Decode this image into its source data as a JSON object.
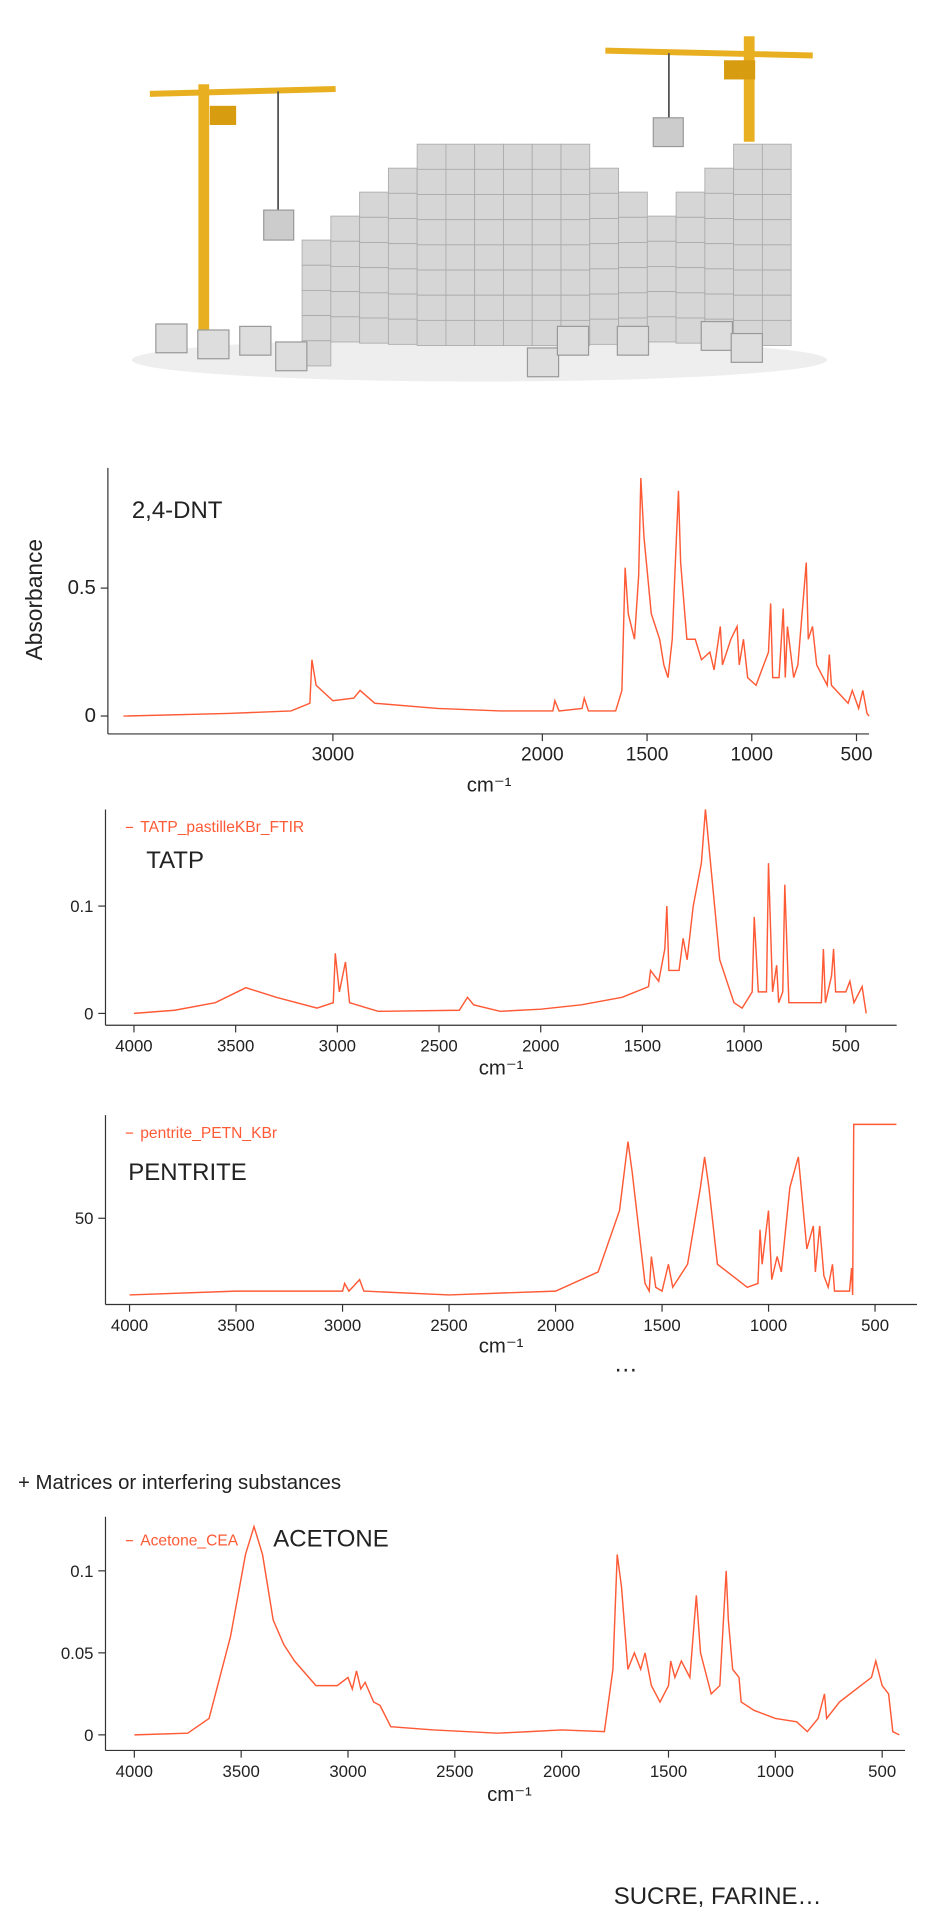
{
  "chart_data": [
    {
      "type": "line",
      "annotation": "2,4-DNT",
      "y_label": "Absorbance",
      "x_label": "cm⁻¹",
      "color": "#ff5a36",
      "xlim": [
        4000,
        440
      ],
      "xticks": [
        3000,
        2000,
        1500,
        1000,
        500
      ],
      "ylim": [
        -0.07,
        0.97
      ],
      "yticks": [
        0,
        0.5
      ],
      "x": [
        4000,
        3500,
        3200,
        3110,
        3100,
        3080,
        3000,
        2900,
        2870,
        2800,
        2500,
        2200,
        1950,
        1940,
        1920,
        1810,
        1800,
        1780,
        1650,
        1620,
        1605,
        1590,
        1560,
        1540,
        1530,
        1515,
        1480,
        1440,
        1420,
        1400,
        1380,
        1365,
        1350,
        1340,
        1310,
        1270,
        1240,
        1200,
        1180,
        1150,
        1140,
        1100,
        1070,
        1060,
        1040,
        1020,
        980,
        920,
        910,
        900,
        870,
        850,
        840,
        830,
        800,
        780,
        740,
        730,
        710,
        690,
        640,
        630,
        620,
        540,
        520,
        490,
        470,
        450,
        440
      ],
      "values": [
        0,
        0.01,
        0.02,
        0.05,
        0.22,
        0.12,
        0.06,
        0.07,
        0.1,
        0.05,
        0.03,
        0.02,
        0.02,
        0.06,
        0.02,
        0.03,
        0.07,
        0.02,
        0.02,
        0.1,
        0.58,
        0.4,
        0.3,
        0.55,
        0.93,
        0.7,
        0.4,
        0.3,
        0.2,
        0.15,
        0.3,
        0.6,
        0.88,
        0.6,
        0.3,
        0.3,
        0.22,
        0.25,
        0.18,
        0.35,
        0.2,
        0.3,
        0.35,
        0.2,
        0.3,
        0.15,
        0.12,
        0.25,
        0.44,
        0.15,
        0.15,
        0.42,
        0.15,
        0.35,
        0.15,
        0.2,
        0.6,
        0.3,
        0.35,
        0.2,
        0.12,
        0.24,
        0.12,
        0.05,
        0.1,
        0.03,
        0.1,
        0.01,
        0
      ]
    },
    {
      "type": "line",
      "annotation": "TATP",
      "x_label": "cm⁻¹",
      "legend": "upper left",
      "xlim": [
        4140,
        250
      ],
      "xticks": [
        4000,
        3500,
        3000,
        2500,
        2000,
        1500,
        1000,
        500
      ],
      "ylim": [
        -0.011,
        0.19
      ],
      "yticks": [
        0,
        0.1
      ],
      "x": [
        4000,
        3800,
        3600,
        3450,
        3300,
        3100,
        3020,
        3010,
        2990,
        2960,
        2940,
        2800,
        2400,
        2360,
        2330,
        2200,
        2000,
        1800,
        1600,
        1470,
        1460,
        1420,
        1390,
        1380,
        1370,
        1320,
        1300,
        1280,
        1250,
        1230,
        1210,
        1190,
        1170,
        1120,
        1050,
        1010,
        960,
        950,
        930,
        890,
        880,
        860,
        840,
        830,
        810,
        800,
        780,
        620,
        610,
        600,
        570,
        560,
        550,
        500,
        480,
        460,
        420,
        400
      ],
      "series": [
        {
          "name": "TATP_pastilleKBr_FTIR",
          "color": "#ff5a36",
          "values": [
            0,
            0.003,
            0.01,
            0.024,
            0.015,
            0.005,
            0.01,
            0.056,
            0.02,
            0.048,
            0.01,
            0.002,
            0.003,
            0.015,
            0.008,
            0.002,
            0.004,
            0.008,
            0.015,
            0.025,
            0.04,
            0.03,
            0.06,
            0.1,
            0.04,
            0.04,
            0.07,
            0.05,
            0.1,
            0.12,
            0.14,
            0.19,
            0.15,
            0.05,
            0.01,
            0.005,
            0.02,
            0.09,
            0.02,
            0.02,
            0.14,
            0.02,
            0.045,
            0.01,
            0.02,
            0.12,
            0.01,
            0.01,
            0.06,
            0.01,
            0.035,
            0.06,
            0.02,
            0.02,
            0.03,
            0.01,
            0.025,
            0
          ]
        }
      ]
    },
    {
      "type": "line",
      "annotation": "PENTRITE",
      "x_label": "cm⁻¹",
      "legend": "upper left",
      "xlim": [
        4113,
        303
      ],
      "xticks": [
        4000,
        3500,
        3000,
        2500,
        2000,
        1500,
        1000,
        500
      ],
      "ylim": [
        27.5,
        76.9
      ],
      "yticks": [
        50
      ],
      "x": [
        4000,
        3500,
        3000,
        2990,
        2970,
        2920,
        2900,
        2500,
        2000,
        1800,
        1700,
        1660,
        1640,
        1580,
        1560,
        1550,
        1530,
        1500,
        1470,
        1450,
        1380,
        1320,
        1300,
        1280,
        1240,
        1100,
        1050,
        1040,
        1030,
        1000,
        985,
        960,
        940,
        900,
        860,
        850,
        820,
        790,
        780,
        760,
        740,
        720,
        700,
        690,
        620,
        610,
        605,
        600,
        400
      ],
      "series": [
        {
          "name": "pentrite_PETN_KBr",
          "color": "#ff5a36",
          "values": [
            30,
            31,
            31,
            33,
            31,
            34,
            31,
            30,
            31,
            36,
            52,
            70,
            62,
            33,
            31,
            40,
            32,
            31,
            38,
            32,
            38,
            58,
            66,
            58,
            38,
            32,
            33,
            47,
            38,
            52,
            34,
            40,
            36,
            58,
            66,
            60,
            42,
            48,
            36,
            48,
            35,
            32,
            38,
            31,
            31,
            37,
            30,
            74.5,
            74.5
          ]
        }
      ]
    },
    {
      "type": "line",
      "annotation": "ACETONE",
      "x_label": "cm⁻¹",
      "legend": "upper left",
      "xlim": [
        4135,
        393
      ],
      "xticks": [
        4000,
        3500,
        3000,
        2500,
        2000,
        1500,
        1000,
        500
      ],
      "ylim": [
        -0.0095,
        0.133
      ],
      "yticks": [
        0,
        0.05,
        0.1
      ],
      "x": [
        4000,
        3750,
        3650,
        3550,
        3480,
        3440,
        3400,
        3350,
        3300,
        3250,
        3150,
        3050,
        3000,
        2980,
        2960,
        2940,
        2920,
        2880,
        2850,
        2800,
        2600,
        2300,
        2150,
        2000,
        1800,
        1760,
        1740,
        1720,
        1690,
        1660,
        1630,
        1610,
        1580,
        1540,
        1500,
        1490,
        1470,
        1440,
        1400,
        1370,
        1350,
        1300,
        1260,
        1230,
        1220,
        1200,
        1170,
        1160,
        1100,
        1000,
        900,
        850,
        800,
        770,
        760,
        700,
        600,
        550,
        530,
        500,
        470,
        450,
        420
      ],
      "series": [
        {
          "name": "Acetone_CEA",
          "color": "#ff5a36",
          "values": [
            0,
            0.001,
            0.01,
            0.06,
            0.11,
            0.127,
            0.11,
            0.07,
            0.055,
            0.045,
            0.03,
            0.03,
            0.035,
            0.028,
            0.039,
            0.028,
            0.032,
            0.02,
            0.018,
            0.005,
            0.003,
            0.001,
            0.002,
            0.003,
            0.002,
            0.04,
            0.11,
            0.09,
            0.04,
            0.05,
            0.04,
            0.05,
            0.03,
            0.02,
            0.03,
            0.045,
            0.035,
            0.045,
            0.035,
            0.085,
            0.05,
            0.025,
            0.03,
            0.1,
            0.07,
            0.04,
            0.035,
            0.02,
            0.015,
            0.01,
            0.008,
            0.002,
            0.01,
            0.025,
            0.01,
            0.02,
            0.03,
            0.035,
            0.045,
            0.03,
            0.025,
            0.002,
            0
          ]
        }
      ]
    }
  ],
  "captions": {
    "more": "…",
    "interfering": "+ Matrices or interfering substances",
    "others": "SUCRE, FARINE…"
  }
}
